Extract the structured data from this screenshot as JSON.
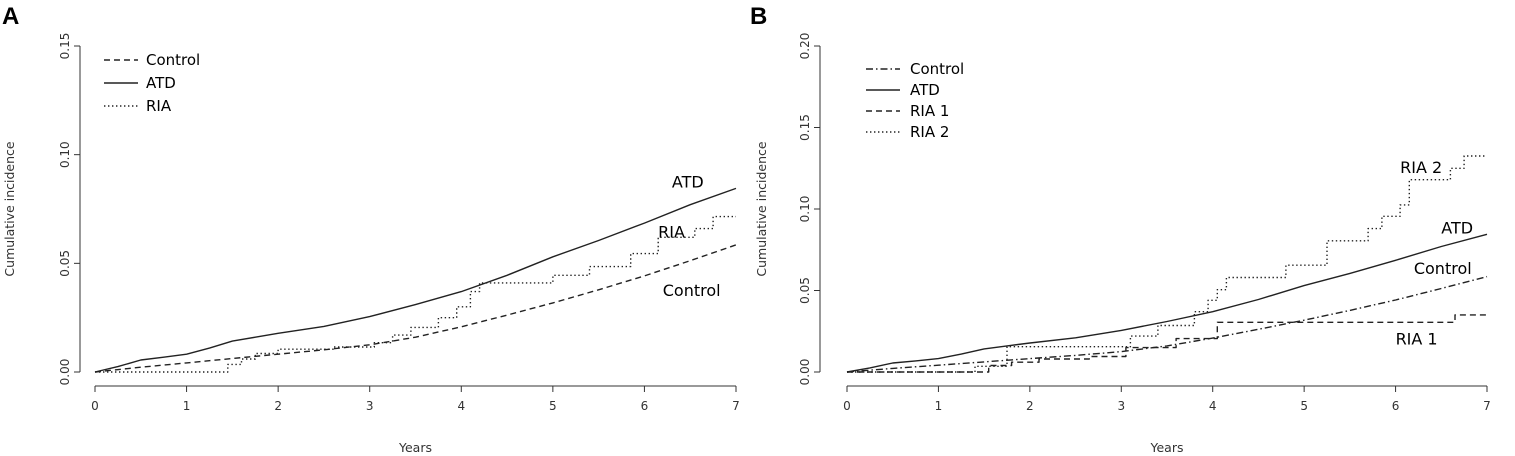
{
  "chart_data": [
    {
      "panel": "A",
      "type": "line",
      "xlabel": "Years",
      "ylabel": "Cumulative incidence",
      "xlim": [
        0,
        7
      ],
      "ylim": [
        0,
        0.15
      ],
      "xticks": [
        "0",
        "1",
        "2",
        "3",
        "4",
        "5",
        "6",
        "7"
      ],
      "yticks": [
        "0.00",
        "0.05",
        "0.10",
        "0.15"
      ],
      "legend_position": "top-left",
      "series": [
        {
          "name": "Control",
          "style": "dashed",
          "label": "Control",
          "label_at": [
            6.2,
            0.035
          ],
          "x": [
            0,
            0.5,
            1,
            1.5,
            2,
            2.5,
            3,
            3.5,
            4,
            4.5,
            5,
            5.5,
            6,
            6.5,
            7
          ],
          "y": [
            0,
            0.0022,
            0.0042,
            0.0062,
            0.0082,
            0.0102,
            0.0125,
            0.016,
            0.0208,
            0.0262,
            0.0318,
            0.0378,
            0.0442,
            0.0512,
            0.0585
          ]
        },
        {
          "name": "ATD",
          "style": "solid",
          "label": "ATD",
          "label_at": [
            6.3,
            0.085
          ],
          "x": [
            0,
            0.25,
            0.5,
            0.75,
            1,
            1.25,
            1.5,
            1.75,
            2,
            2.5,
            3,
            3.5,
            4,
            4.5,
            5,
            5.5,
            6,
            6.5,
            7
          ],
          "y": [
            0,
            0.0025,
            0.0055,
            0.0068,
            0.0082,
            0.011,
            0.0142,
            0.016,
            0.0178,
            0.021,
            0.0255,
            0.031,
            0.037,
            0.0445,
            0.053,
            0.0605,
            0.0685,
            0.077,
            0.0845
          ]
        },
        {
          "name": "RIA",
          "style": "dotted",
          "step": true,
          "label": "RIA",
          "label_at": [
            6.15,
            0.062
          ],
          "x": [
            0,
            1.45,
            1.6,
            1.75,
            2.0,
            2.6,
            3.05,
            3.25,
            3.45,
            3.75,
            3.95,
            4.1,
            4.2,
            5.0,
            5.4,
            5.85,
            6.15,
            6.55,
            6.75,
            7
          ],
          "y": [
            0,
            0.0035,
            0.006,
            0.0085,
            0.0105,
            0.0115,
            0.0135,
            0.017,
            0.0205,
            0.025,
            0.03,
            0.037,
            0.041,
            0.0445,
            0.0485,
            0.0545,
            0.062,
            0.066,
            0.0715,
            0.0715
          ]
        }
      ]
    },
    {
      "panel": "B",
      "type": "line",
      "xlabel": "Years",
      "ylabel": "Cumulative incidence",
      "xlim": [
        0,
        7
      ],
      "ylim": [
        0,
        0.2
      ],
      "xticks": [
        "0",
        "1",
        "2",
        "3",
        "4",
        "5",
        "6",
        "7"
      ],
      "yticks": [
        "0.00",
        "0.05",
        "0.10",
        "0.15",
        "0.20"
      ],
      "legend_position": "top-left",
      "series": [
        {
          "name": "Control",
          "style": "dashdot",
          "label": "Control",
          "label_at": [
            6.2,
            0.06
          ],
          "x": [
            0,
            0.5,
            1,
            1.5,
            2,
            2.5,
            3,
            3.5,
            4,
            4.5,
            5,
            5.5,
            6,
            6.5,
            7
          ],
          "y": [
            0,
            0.0022,
            0.0042,
            0.0062,
            0.0082,
            0.0102,
            0.0125,
            0.016,
            0.0208,
            0.0262,
            0.0318,
            0.0378,
            0.0442,
            0.0512,
            0.0585
          ]
        },
        {
          "name": "ATD",
          "style": "solid",
          "label": "ATD",
          "label_at": [
            6.5,
            0.085
          ],
          "x": [
            0,
            0.25,
            0.5,
            0.75,
            1,
            1.25,
            1.5,
            1.75,
            2,
            2.5,
            3,
            3.5,
            4,
            4.5,
            5,
            5.5,
            6,
            6.5,
            7
          ],
          "y": [
            0,
            0.0025,
            0.0055,
            0.0068,
            0.0082,
            0.011,
            0.0142,
            0.016,
            0.0178,
            0.021,
            0.0255,
            0.031,
            0.037,
            0.0445,
            0.053,
            0.0605,
            0.0685,
            0.077,
            0.0845
          ]
        },
        {
          "name": "RIA 1",
          "style": "dashed",
          "step": true,
          "label": "RIA 1",
          "label_at": [
            6.0,
            0.017
          ],
          "x": [
            0,
            1.55,
            1.8,
            2.1,
            2.65,
            3.05,
            3.6,
            4.05,
            6.65,
            7
          ],
          "y": [
            0,
            0.004,
            0.006,
            0.008,
            0.0095,
            0.015,
            0.0205,
            0.0305,
            0.035,
            0.035
          ]
        },
        {
          "name": "RIA 2",
          "style": "dotted",
          "step": true,
          "label": "RIA 2",
          "label_at": [
            6.05,
            0.122
          ],
          "x": [
            0,
            1.4,
            1.75,
            2.55,
            3.1,
            3.4,
            3.8,
            3.95,
            4.05,
            4.15,
            4.8,
            5.25,
            5.7,
            5.85,
            6.05,
            6.15,
            6.6,
            6.75,
            7
          ],
          "y": [
            0,
            0.0035,
            0.0155,
            0.0155,
            0.022,
            0.0285,
            0.037,
            0.044,
            0.0505,
            0.058,
            0.0655,
            0.0805,
            0.088,
            0.0955,
            0.1025,
            0.118,
            0.125,
            0.1325,
            0.1325
          ]
        }
      ]
    }
  ]
}
